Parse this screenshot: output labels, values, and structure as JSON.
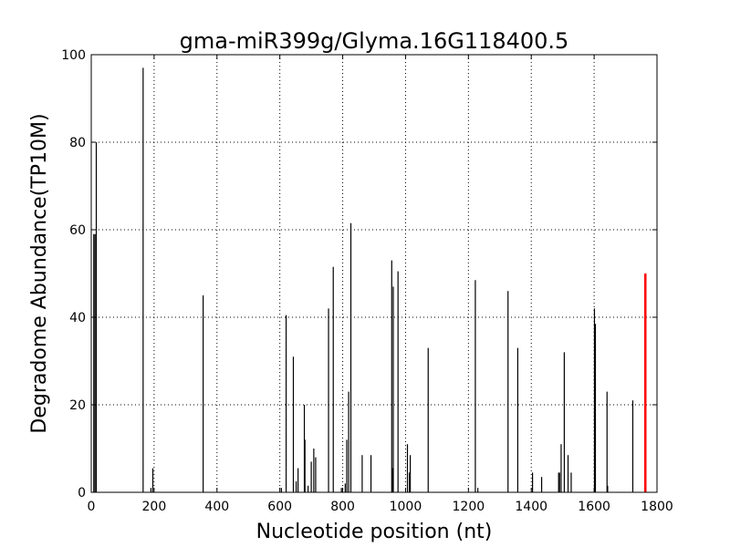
{
  "chart_data": {
    "type": "bar",
    "title": "gma-miR399g/Glyma.16G118400.5",
    "xlabel": "Nucleotide position (nt)",
    "ylabel": "Degradome Abundance(TP10M)",
    "xlim": [
      0,
      1800
    ],
    "ylim": [
      0,
      100
    ],
    "xticks": [
      0,
      200,
      400,
      600,
      800,
      1000,
      1200,
      1400,
      1600,
      1800
    ],
    "yticks": [
      0,
      20,
      40,
      60,
      80,
      100
    ],
    "grid": true,
    "colors": {
      "bars": "#000000",
      "highlight": "#ff0000"
    },
    "series": [
      {
        "x": [
          8,
          12,
          16,
          165,
          190,
          196,
          356,
          605,
          620,
          643,
          652,
          658,
          678,
          680,
          690,
          700,
          708,
          714,
          755,
          770,
          796,
          808,
          813,
          819,
          826,
          862,
          890,
          956,
          958,
          961,
          976,
          1006,
          1012,
          1015,
          1072,
          1222,
          1230,
          1326,
          1357,
          1404,
          1433,
          1487,
          1490,
          1495,
          1505,
          1517,
          1527,
          1601,
          1604,
          1641,
          1643,
          1723
        ],
        "values": [
          59,
          59,
          80,
          97,
          1,
          5.5,
          45,
          1,
          40.5,
          31,
          2.5,
          5.5,
          20,
          12,
          1.5,
          7,
          10,
          8,
          42,
          51.5,
          1,
          2,
          12,
          23,
          61.5,
          8.5,
          8.5,
          53,
          5.5,
          47,
          50.5,
          11,
          4.5,
          8.5,
          33,
          48.5,
          1,
          46,
          33,
          4.5,
          3.5,
          4.5,
          4.5,
          11,
          32,
          8.5,
          4.5,
          42,
          38.5,
          23,
          1.5,
          21
        ]
      },
      {
        "x": [
          1763
        ],
        "values": [
          50
        ]
      }
    ]
  }
}
